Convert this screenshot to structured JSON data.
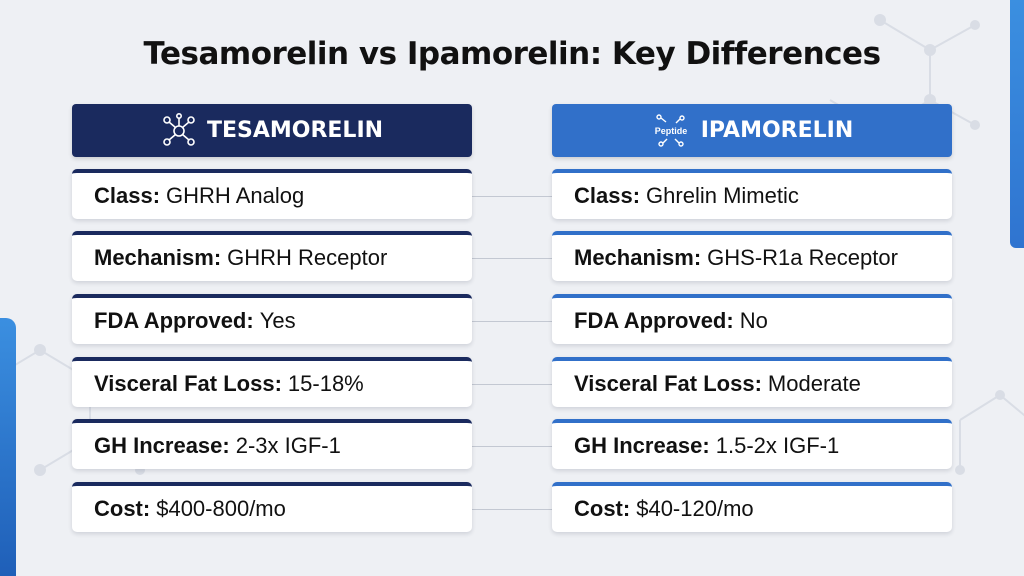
{
  "title": "Tesamorelin vs Ipamorelin: Key Differences",
  "colors": {
    "left_header": "#1a2a5e",
    "right_header": "#3170c9",
    "background": "#eef0f4",
    "accent": "#3b8fe0"
  },
  "left": {
    "name": "TESAMORELIN",
    "icon": "molecule-icon",
    "rows": [
      {
        "label": "Class:",
        "value": "GHRH Analog"
      },
      {
        "label": "Mechanism:",
        "value": "GHRH Receptor"
      },
      {
        "label": "FDA Approved:",
        "value": "Yes"
      },
      {
        "label": "Visceral Fat Loss:",
        "value": "15-18%"
      },
      {
        "label": "GH Increase:",
        "value": "2-3x IGF-1"
      },
      {
        "label": "Cost:",
        "value": "$400-800/mo"
      }
    ]
  },
  "right": {
    "name": "IPAMORELIN",
    "icon": "peptide-icon",
    "icon_text": "Peptide",
    "rows": [
      {
        "label": "Class:",
        "value": "Ghrelin Mimetic"
      },
      {
        "label": "Mechanism:",
        "value": "GHS-R1a Receptor"
      },
      {
        "label": "FDA Approved:",
        "value": "No"
      },
      {
        "label": "Visceral Fat Loss:",
        "value": "Moderate"
      },
      {
        "label": "GH Increase:",
        "value": "1.5-2x IGF-1"
      },
      {
        "label": "Cost:",
        "value": "$40-120/mo"
      }
    ]
  }
}
